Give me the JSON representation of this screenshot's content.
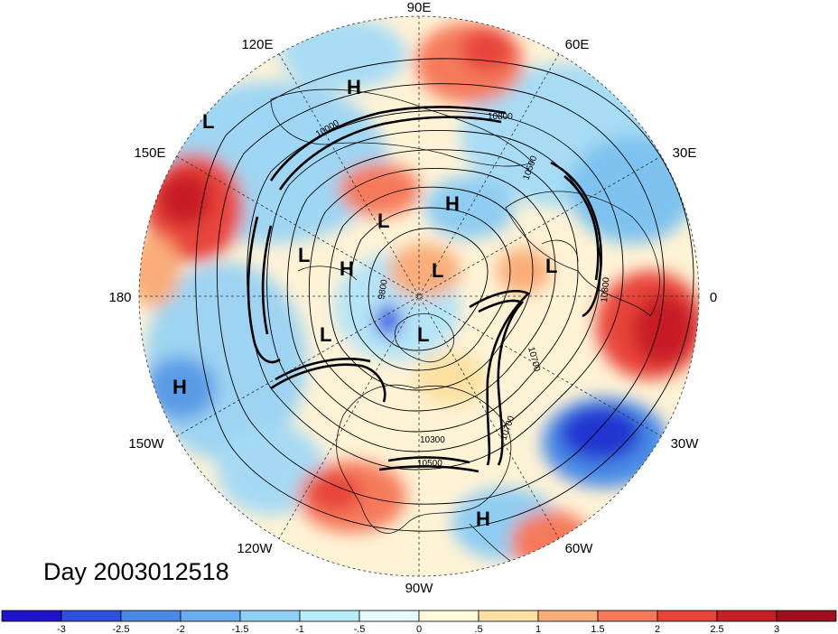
{
  "title": "Day 2003012518",
  "longitude_labels": [
    "90E",
    "60E",
    "30E",
    "0",
    "30W",
    "60W",
    "90W",
    "120W",
    "150W",
    "180",
    "150E",
    "120E"
  ],
  "pressure_centers": [
    {
      "type": "H",
      "region": "siberia-east"
    },
    {
      "type": "L",
      "region": "pacific-northwest-edge"
    },
    {
      "type": "H",
      "region": "arctic-russia"
    },
    {
      "type": "L",
      "region": "east-siberian-sea"
    },
    {
      "type": "L",
      "region": "bering-sea"
    },
    {
      "type": "H",
      "region": "chukchi"
    },
    {
      "type": "L",
      "region": "arctic-ocean"
    },
    {
      "type": "L",
      "region": "barents-sea"
    },
    {
      "type": "L",
      "region": "gulf-of-alaska"
    },
    {
      "type": "L",
      "region": "canadian-arctic"
    },
    {
      "type": "H",
      "region": "north-pacific"
    },
    {
      "type": "H",
      "region": "subtropical-atlantic"
    }
  ],
  "contour_labels": [
    "10800",
    "10500",
    "10000",
    "9800",
    "10700",
    "10800",
    "10700",
    "10300",
    "10500"
  ],
  "colorbar": {
    "ticks": [
      "-3",
      "-2.5",
      "-2",
      "-1.5",
      "-1",
      "-.5",
      "0",
      ".5",
      "1",
      "1.5",
      "2",
      "2.5",
      "3"
    ],
    "colors": [
      "#1f13c9",
      "#2f4fe0",
      "#4a8ae6",
      "#68aef0",
      "#8fd0f5",
      "#b7ecf7",
      "#e6fbfd",
      "#fff8d9",
      "#fde1a3",
      "#f9ad78",
      "#f57a5b",
      "#e8453a",
      "#c71f26",
      "#a00f1e"
    ]
  },
  "anomaly_patches": {
    "warm": "#e8453a",
    "warm_deep": "#c71f26",
    "cool": "#68aef0",
    "cool_deep": "#1f13c9"
  }
}
